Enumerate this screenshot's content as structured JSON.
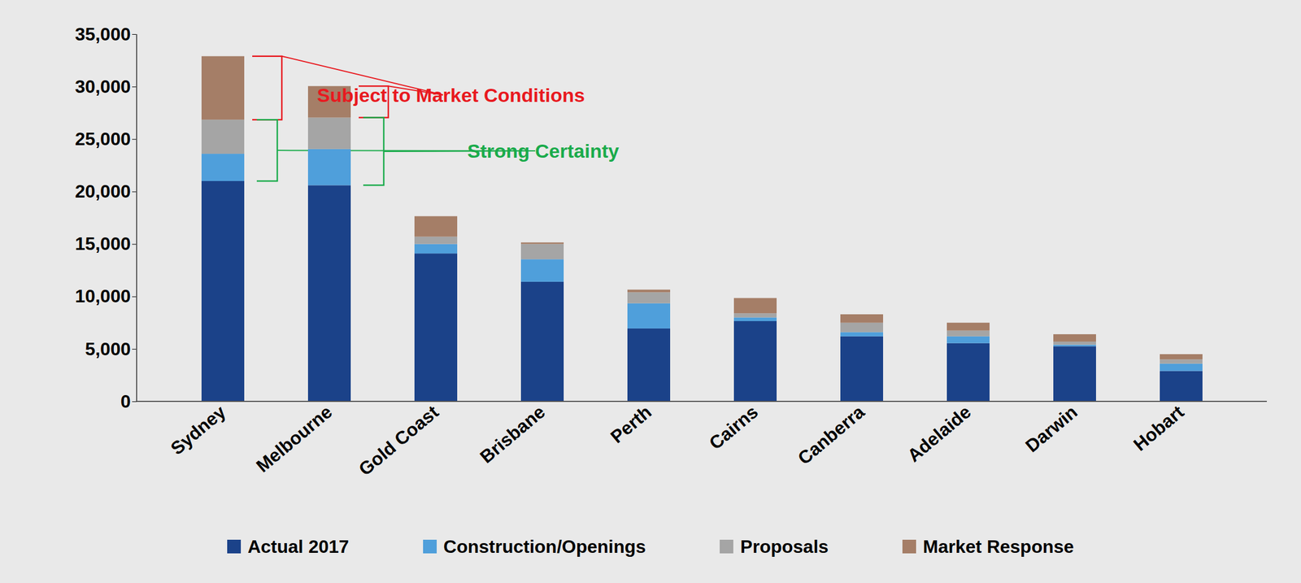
{
  "chart_data": {
    "type": "bar",
    "stacked": true,
    "categories": [
      "Sydney",
      "Melbourne",
      "Gold Coast",
      "Brisbane",
      "Perth",
      "Cairns",
      "Canberra",
      "Adelaide",
      "Darwin",
      "Hobart"
    ],
    "series": [
      {
        "name": "Actual 2017",
        "color": "#1b4289",
        "values": [
          21000,
          20600,
          14100,
          11400,
          6950,
          7650,
          6200,
          5550,
          5250,
          2900
        ]
      },
      {
        "name": "Construction/Openings",
        "color": "#4f9fdb",
        "values": [
          2600,
          3450,
          900,
          2150,
          2400,
          350,
          400,
          650,
          150,
          700
        ]
      },
      {
        "name": "Proposals",
        "color": "#a5a5a5",
        "values": [
          3250,
          3000,
          700,
          1450,
          1050,
          400,
          900,
          550,
          300,
          400
        ]
      },
      {
        "name": "Market Response",
        "color": "#a57e67",
        "values": [
          6050,
          3000,
          1950,
          150,
          250,
          1450,
          800,
          750,
          700,
          500
        ]
      }
    ],
    "ylim": [
      0,
      35000
    ],
    "yticks": [
      0,
      {
        "value": 5000,
        "label": "5,000"
      },
      {
        "value": 10000,
        "label": "10,000"
      },
      {
        "value": 15000,
        "label": "15,000"
      },
      {
        "value": 20000,
        "label": "20,000"
      },
      {
        "value": 25000,
        "label": "25,000"
      },
      {
        "value": 30000,
        "label": "30,000"
      },
      {
        "value": 35000,
        "label": "35,000"
      }
    ],
    "grid": false,
    "legend": "bottom",
    "annotations": [
      {
        "text": "Subject to Market Conditions",
        "color": "#e8191f",
        "categories": [
          "Sydney",
          "Melbourne"
        ],
        "series": [
          "Market Response"
        ]
      },
      {
        "text": "Strong Certainty",
        "color": "#1aab4b",
        "categories": [
          "Sydney",
          "Melbourne"
        ],
        "series": [
          "Construction/Openings",
          "Proposals"
        ]
      }
    ]
  }
}
